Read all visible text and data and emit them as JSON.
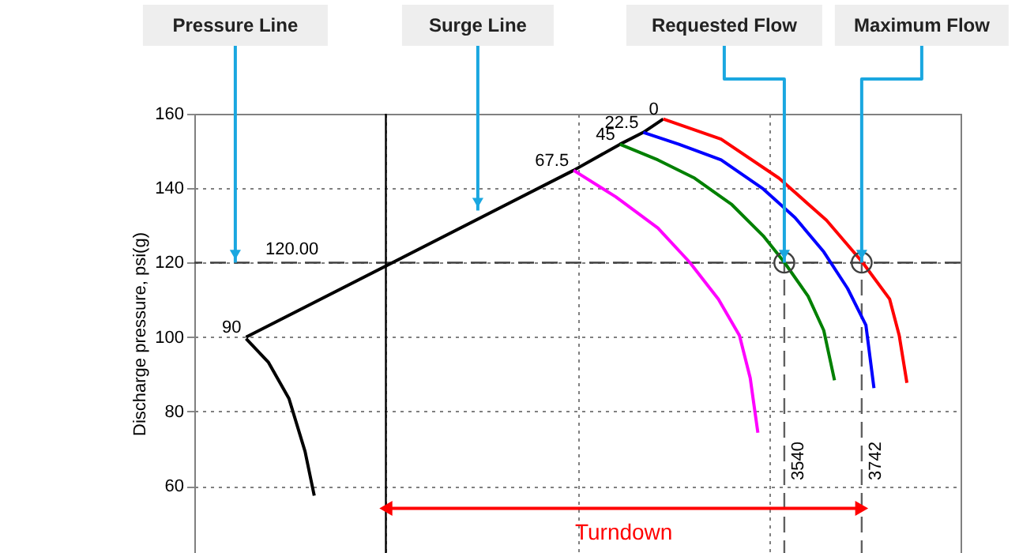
{
  "chart_data": {
    "type": "line",
    "ylabel": "Discharge pressure, psi(g)",
    "xlim": [
      2000,
      4000
    ],
    "ylim": [
      42,
      160
    ],
    "xticks": [
      {
        "value": 2000,
        "label": null
      },
      {
        "value": 2500,
        "label": null
      },
      {
        "value": 3000,
        "label": null
      },
      {
        "value": 3500,
        "label": null
      },
      {
        "value": 4000,
        "label": null
      }
    ],
    "yticks": [
      60,
      80,
      100,
      120,
      140,
      160
    ],
    "tick_labels": "y",
    "grid": true,
    "series": [
      {
        "color": "#000000",
        "x": [
          2135,
          2193,
          2247,
          2289,
          2313
        ],
        "values": [
          99.6,
          93.3,
          83.5,
          69.3,
          57.4
        ]
      },
      {
        "color": "#000000",
        "x": [
          2135,
          2990,
          3111,
          3172,
          3224
        ],
        "values": [
          100,
          144.8,
          151.8,
          155,
          158.6
        ]
      },
      {
        "color": "#ff00ff",
        "x": [
          2990,
          3100,
          3210,
          3293,
          3368,
          3423,
          3451,
          3471
        ],
        "values": [
          144.8,
          137.7,
          129.3,
          120.1,
          110.2,
          100.4,
          89,
          74.3
        ]
      },
      {
        "color": "#008000",
        "x": [
          3111,
          3210,
          3306,
          3403,
          3485,
          3540,
          3602,
          3643,
          3671
        ],
        "values": [
          151.8,
          147.6,
          142.7,
          135.6,
          127.2,
          120.1,
          111,
          101.8,
          88.4
        ]
      },
      {
        "color": "#0000ff",
        "x": [
          3172,
          3265,
          3375,
          3485,
          3568,
          3643,
          3705,
          3753,
          3774
        ],
        "values": [
          155,
          151.8,
          147.6,
          139.8,
          132.1,
          122.9,
          113.1,
          103.2,
          86.3
        ]
      },
      {
        "color": "#ff0000",
        "x": [
          3224,
          3375,
          3526,
          3650,
          3744,
          3815,
          3840,
          3860
        ],
        "values": [
          158.6,
          153.2,
          142.7,
          131.4,
          120.1,
          110.2,
          100.4,
          87.7
        ]
      },
      {
        "type": "scatter",
        "color": "#404040",
        "marker": "circle",
        "x": [
          3540,
          3742
        ],
        "values": [
          120,
          120
        ]
      },
      {
        "name": "Turndown",
        "color": "#ff0000",
        "marker": "triangle",
        "x": [
          2500,
          3742
        ],
        "values": [
          54,
          54
        ]
      }
    ],
    "ref_lines": [
      {
        "axis": "y",
        "value": 120,
        "label": "120.00",
        "color": "#404040",
        "line_style": "dashed"
      },
      {
        "axis": "x",
        "value": 3540,
        "label": "3540",
        "color": "#606060",
        "line_style": "dashed"
      },
      {
        "axis": "x",
        "value": 3742,
        "label": "3742",
        "color": "#606060",
        "line_style": "dashed"
      },
      {
        "axis": "x",
        "value": 2500,
        "color": "#000000",
        "line_style": "solid"
      }
    ],
    "annotations": [
      {
        "text": "90",
        "x": 2135,
        "y": 100
      },
      {
        "text": "67.5",
        "x": 2990,
        "y": 144.8
      },
      {
        "text": "45",
        "x": 3111,
        "y": 151.8
      },
      {
        "text": "22.5",
        "x": 3172,
        "y": 155
      },
      {
        "text": "0",
        "x": 3224,
        "y": 158.6
      },
      {
        "text": "Pressure Line",
        "x": 2107,
        "y": 120
      },
      {
        "text": "Surge Line",
        "x": 2740,
        "y": 134
      },
      {
        "text": "Requested Flow",
        "x": 3540,
        "y": 120
      },
      {
        "text": "Maximum Flow",
        "x": 3742,
        "y": 120
      }
    ]
  }
}
